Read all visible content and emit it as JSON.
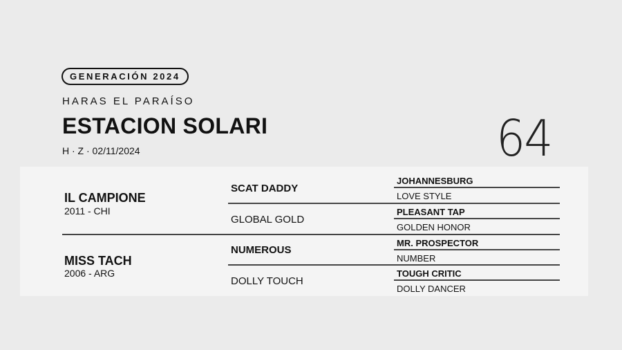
{
  "header": {
    "generation_badge": "GENERACIÓN 2024",
    "haras": "HARAS EL PARAÍSO",
    "horse_name": "ESTACION SOLARI",
    "meta": "H · Z · 02/11/2024",
    "lot_number": "64"
  },
  "pedigree": {
    "sire": {
      "name": "IL CAMPIONE",
      "info": "2011 - CHI"
    },
    "dam": {
      "name": "MISS TACH",
      "info": "2006 - ARG"
    },
    "grandparents": [
      "SCAT DADDY",
      "GLOBAL GOLD",
      "NUMEROUS",
      "DOLLY TOUCH"
    ],
    "great_grandparents": [
      "JOHANNESBURG",
      "LOVE STYLE",
      "PLEASANT TAP",
      "GOLDEN HONOR",
      "MR. PROSPECTOR",
      "NUMBER",
      "TOUGH CRITIC",
      "DOLLY DANCER"
    ]
  }
}
